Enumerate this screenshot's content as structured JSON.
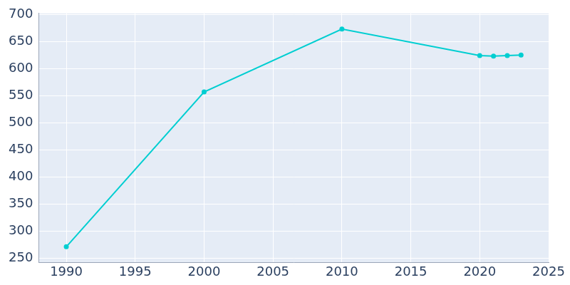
{
  "chart_data": {
    "type": "line",
    "x": [
      1990,
      2000,
      2010,
      2020,
      2021,
      2022,
      2023
    ],
    "values": [
      271,
      557,
      673,
      624,
      623,
      624,
      625
    ],
    "color": "#00ced1",
    "marker": "circle",
    "xlim": [
      1988,
      2025
    ],
    "xticks": [
      1990,
      1995,
      2000,
      2005,
      2010,
      2015,
      2020,
      2025
    ],
    "ylim": [
      242,
      702
    ],
    "yticks": [
      250,
      300,
      350,
      400,
      450,
      500,
      550,
      600,
      650,
      700
    ],
    "grid": true
  }
}
